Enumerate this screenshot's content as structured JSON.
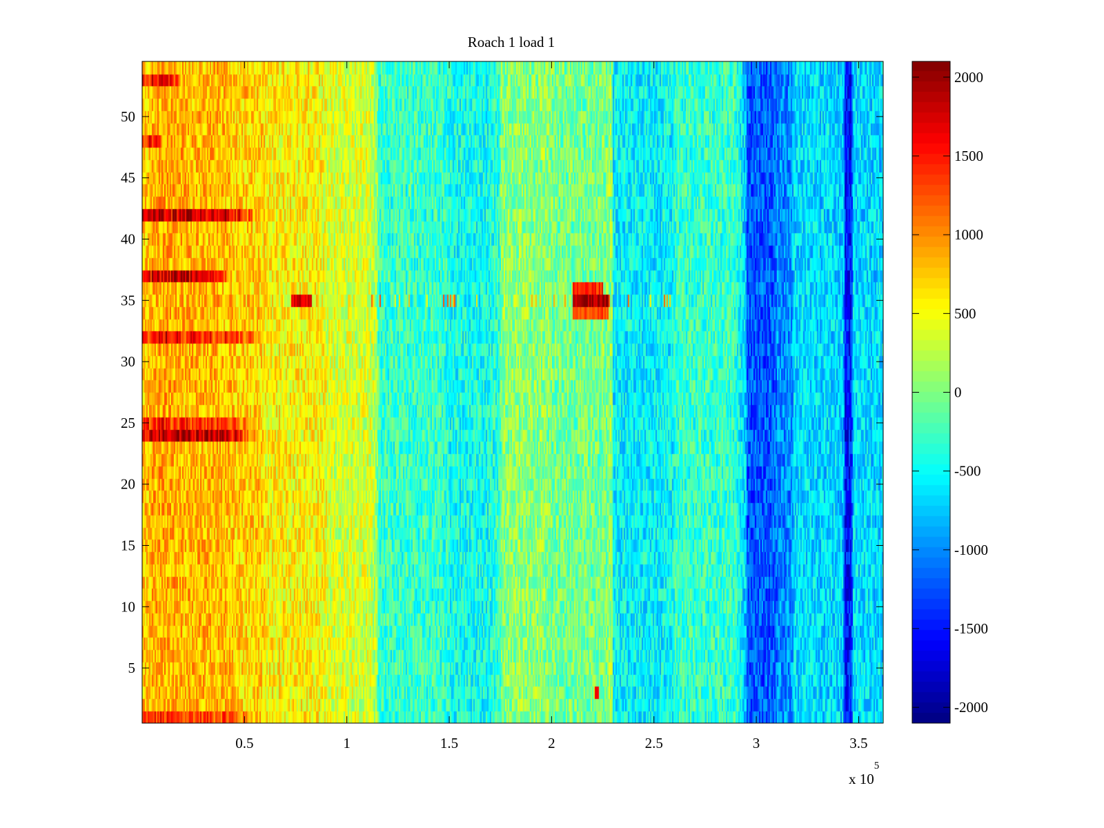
{
  "chart_data": {
    "type": "heatmap",
    "title": "Roach 1 load 1",
    "xlabel": "",
    "ylabel": "",
    "x_range": [
      0,
      362000
    ],
    "y_range": [
      0.5,
      54.5
    ],
    "x_ticks": [
      {
        "value": 50000,
        "label": "0.5"
      },
      {
        "value": 100000,
        "label": "1"
      },
      {
        "value": 150000,
        "label": "1.5"
      },
      {
        "value": 200000,
        "label": "2"
      },
      {
        "value": 250000,
        "label": "2.5"
      },
      {
        "value": 300000,
        "label": "3"
      },
      {
        "value": 350000,
        "label": "3.5"
      }
    ],
    "x_multiplier": {
      "base": "x 10",
      "exponent": "5"
    },
    "y_ticks": [
      {
        "value": 5,
        "label": "5"
      },
      {
        "value": 10,
        "label": "10"
      },
      {
        "value": 15,
        "label": "15"
      },
      {
        "value": 20,
        "label": "20"
      },
      {
        "value": 25,
        "label": "25"
      },
      {
        "value": 30,
        "label": "30"
      },
      {
        "value": 35,
        "label": "35"
      },
      {
        "value": 40,
        "label": "40"
      },
      {
        "value": 45,
        "label": "45"
      },
      {
        "value": 50,
        "label": "50"
      }
    ],
    "colorbar": {
      "colormap": "jet",
      "range": [
        -2100,
        2100
      ],
      "ticks": [
        {
          "value": 2000,
          "label": "2000"
        },
        {
          "value": 1500,
          "label": "1500"
        },
        {
          "value": 1000,
          "label": "1000"
        },
        {
          "value": 500,
          "label": "500"
        },
        {
          "value": 0,
          "label": "0"
        },
        {
          "value": -500,
          "label": "-500"
        },
        {
          "value": -1000,
          "label": "-1000"
        },
        {
          "value": -1500,
          "label": "-1500"
        },
        {
          "value": -2000,
          "label": "-2000"
        }
      ]
    },
    "rows": 54,
    "column_segments_x": [
      0,
      5000,
      20000,
      45000,
      60000,
      90000,
      113000,
      115000,
      150000,
      172000,
      175000,
      200000,
      228000,
      230000,
      255000,
      260000,
      295000,
      310000,
      318000,
      340000,
      343000,
      347000,
      362000
    ],
    "column_segments_value": [
      750,
      850,
      800,
      700,
      550,
      350,
      200,
      -300,
      -450,
      -350,
      50,
      -50,
      80,
      -550,
      -500,
      -300,
      -1200,
      -1000,
      -650,
      -700,
      -1500,
      -650
    ],
    "row_offsets": [
      {
        "rows": [
          1
        ],
        "x_end": 60000,
        "offset": 500
      },
      {
        "rows": [
          24
        ],
        "x_end": 60000,
        "offset": 1000
      },
      {
        "rows": [
          25
        ],
        "x_end": 60000,
        "offset": 600
      },
      {
        "rows": [
          32
        ],
        "x_end": 65000,
        "offset": 700
      },
      {
        "rows": [
          37
        ],
        "x_end": 45000,
        "offset": 1000
      },
      {
        "rows": [
          42
        ],
        "x_end": 60000,
        "offset": 1000
      },
      {
        "rows": [
          48
        ],
        "x_end": 10000,
        "offset": 800
      },
      {
        "rows": [
          53
        ],
        "x_end": 20000,
        "offset": 700
      }
    ],
    "hot_spots": [
      {
        "row": 35,
        "x_start": 73000,
        "x_end": 83000,
        "value": 1700
      },
      {
        "row": 35,
        "x_start": 100000,
        "x_end": 270000,
        "value": 400,
        "stripe": true
      },
      {
        "row": 34,
        "x_start": 210000,
        "x_end": 228000,
        "value": 1300
      },
      {
        "row": 35,
        "x_start": 210000,
        "x_end": 228000,
        "value": 1900
      },
      {
        "row": 36,
        "x_start": 210000,
        "x_end": 225000,
        "value": 1400
      },
      {
        "row": 3,
        "x_start": 221000,
        "x_end": 223000,
        "value": 1500
      }
    ],
    "noise_amplitude": 230
  }
}
